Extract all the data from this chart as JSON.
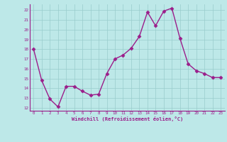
{
  "x": [
    0,
    1,
    2,
    3,
    4,
    5,
    6,
    7,
    8,
    9,
    10,
    11,
    12,
    13,
    14,
    15,
    16,
    17,
    18,
    19,
    20,
    21,
    22,
    23
  ],
  "y": [
    18,
    14.8,
    12.9,
    12.1,
    14.2,
    14.2,
    13.7,
    13.3,
    13.4,
    15.5,
    17.0,
    17.4,
    18.1,
    19.3,
    21.8,
    20.4,
    21.9,
    22.2,
    19.1,
    16.5,
    15.8,
    15.5,
    15.1,
    15.1
  ],
  "color": "#9b1d8a",
  "bg_color": "#bde8e8",
  "grid_color": "#99cccc",
  "xlabel": "Windchill (Refroidissement éolien,°C)",
  "xlabel_color": "#9b1d8a",
  "ylim": [
    11.7,
    22.6
  ],
  "xlim": [
    -0.5,
    23.5
  ],
  "yticks": [
    12,
    13,
    14,
    15,
    16,
    17,
    18,
    19,
    20,
    21,
    22
  ],
  "xticks": [
    0,
    1,
    2,
    3,
    4,
    5,
    6,
    7,
    8,
    9,
    10,
    11,
    12,
    13,
    14,
    15,
    16,
    17,
    18,
    19,
    20,
    21,
    22,
    23
  ],
  "tick_color": "#9b1d8a",
  "marker": "D",
  "marker_size": 2.5,
  "line_width": 1.0
}
